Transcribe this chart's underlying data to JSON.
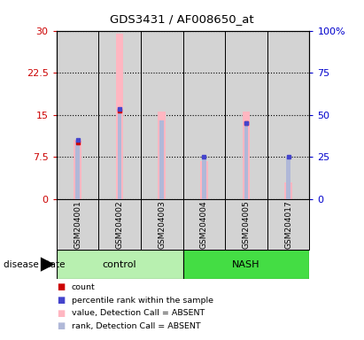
{
  "title": "GDS3431 / AF008650_at",
  "samples": [
    "GSM204001",
    "GSM204002",
    "GSM204003",
    "GSM204004",
    "GSM204005",
    "GSM204017"
  ],
  "value_absent": [
    10.5,
    29.5,
    15.5,
    6.8,
    15.5,
    3.0
  ],
  "rank_absent_left_scale": [
    10.5,
    16.0,
    14.0,
    7.5,
    13.5,
    7.5
  ],
  "count_val": [
    10.0,
    15.8,
    null,
    null,
    13.5,
    null
  ],
  "percentile_val": [
    10.5,
    16.0,
    null,
    7.5,
    13.5,
    7.5
  ],
  "left_ylim": [
    0,
    30
  ],
  "right_ylim": [
    0,
    100
  ],
  "left_yticks": [
    0,
    7.5,
    15,
    22.5,
    30
  ],
  "right_yticks": [
    0,
    25,
    50,
    75,
    100
  ],
  "left_ytick_labels": [
    "0",
    "7.5",
    "15",
    "22.5",
    "30"
  ],
  "right_ytick_labels": [
    "0",
    "25",
    "50",
    "75",
    "100%"
  ],
  "left_color": "#cc0000",
  "right_color": "#0000cc",
  "bar_value_color": "#ffb6c1",
  "bar_rank_color": "#b0b8d8",
  "count_color": "#cc0000",
  "percentile_color": "#4444cc",
  "bg_color": "#d3d3d3",
  "control_color": "#b8f0b0",
  "nash_color": "#44dd44",
  "legend_items": [
    {
      "label": "count",
      "color": "#cc0000"
    },
    {
      "label": "percentile rank within the sample",
      "color": "#4444cc"
    },
    {
      "label": "value, Detection Call = ABSENT",
      "color": "#ffb6c1"
    },
    {
      "label": "rank, Detection Call = ABSENT",
      "color": "#b0b8d8"
    }
  ]
}
